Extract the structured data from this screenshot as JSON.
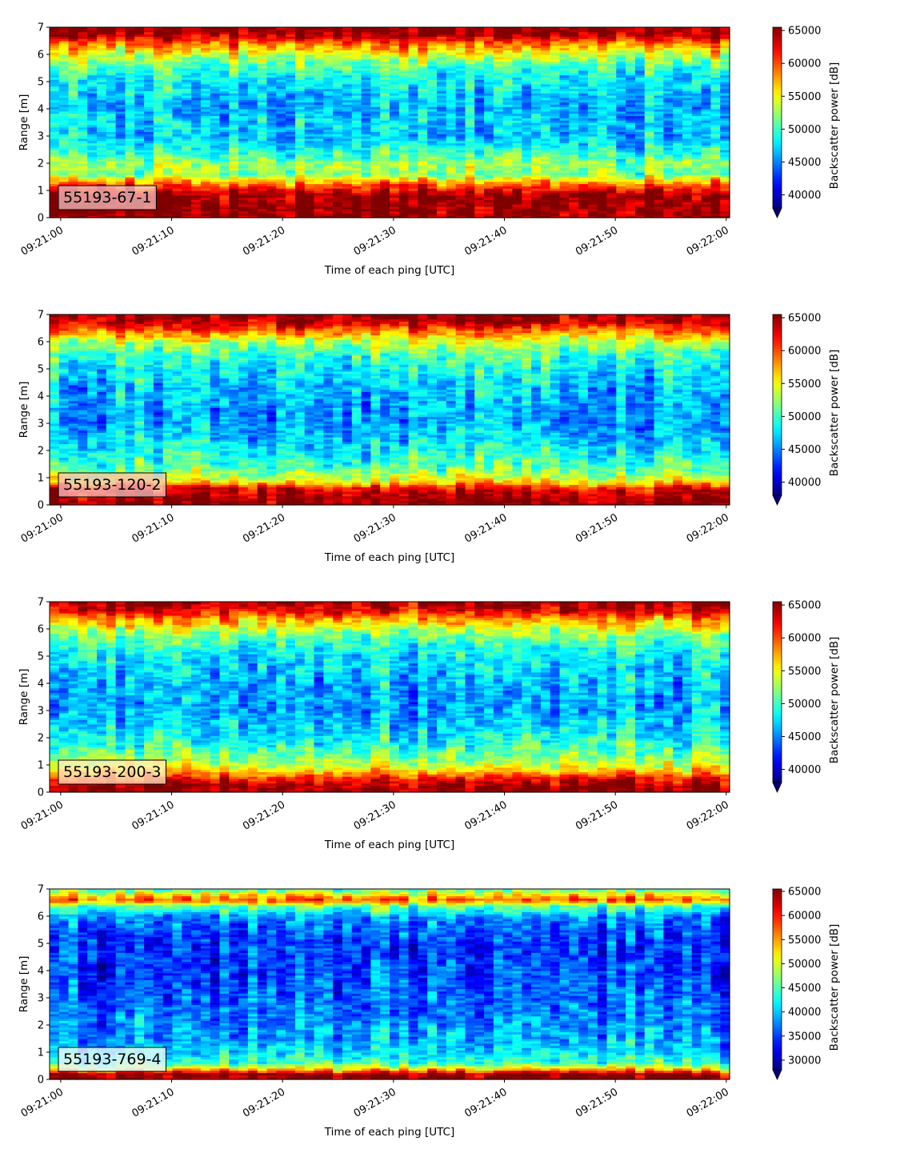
{
  "chart_data": [
    {
      "type": "heatmap",
      "label": "55193-67-1",
      "xlabel": "Time of each ping [UTC]",
      "ylabel": "Range [m]",
      "x_ticks": [
        "09:21:00",
        "09:21:10",
        "09:21:20",
        "09:21:30",
        "09:21:40",
        "09:21:50",
        "09:22:00"
      ],
      "xlim": [
        "09:20:59",
        "09:22:00.3"
      ],
      "y_ticks": [
        "0",
        "1",
        "2",
        "3",
        "4",
        "5",
        "6",
        "7"
      ],
      "ylim": [
        0,
        7
      ],
      "colorbar_label": "Backscatter power [dB]",
      "colorbar_ticks": [
        "40000",
        "45000",
        "50000",
        "55000",
        "60000",
        "65000"
      ],
      "colorbar_range": [
        38000,
        65500
      ],
      "colormap": "jet",
      "profile": [
        {
          "range_m": 0.25,
          "level": 65000
        },
        {
          "range_m": 0.8,
          "level": 65000
        },
        {
          "range_m": 1.2,
          "level": 60000
        },
        {
          "range_m": 1.6,
          "level": 52000
        },
        {
          "range_m": 2.0,
          "level": 53000
        },
        {
          "range_m": 2.5,
          "level": 49000
        },
        {
          "range_m": 3.0,
          "level": 47000
        },
        {
          "range_m": 3.5,
          "level": 47500
        },
        {
          "range_m": 4.0,
          "level": 46500
        },
        {
          "range_m": 4.5,
          "level": 47000
        },
        {
          "range_m": 5.0,
          "level": 48000
        },
        {
          "range_m": 5.5,
          "level": 50000
        },
        {
          "range_m": 6.0,
          "level": 54000
        },
        {
          "range_m": 6.4,
          "level": 59000
        },
        {
          "range_m": 6.7,
          "level": 64000
        },
        {
          "range_m": 7.0,
          "level": 65000
        }
      ]
    },
    {
      "type": "heatmap",
      "label": "55193-120-2",
      "xlabel": "Time of each ping [UTC]",
      "ylabel": "Range [m]",
      "x_ticks": [
        "09:21:00",
        "09:21:10",
        "09:21:20",
        "09:21:30",
        "09:21:40",
        "09:21:50",
        "09:22:00"
      ],
      "xlim": [
        "09:20:59",
        "09:22:00.3"
      ],
      "y_ticks": [
        "0",
        "1",
        "2",
        "3",
        "4",
        "5",
        "6",
        "7"
      ],
      "ylim": [
        0,
        7
      ],
      "colorbar_label": "Backscatter power [dB]",
      "colorbar_ticks": [
        "40000",
        "45000",
        "50000",
        "55000",
        "60000",
        "65000"
      ],
      "colorbar_range": [
        38000,
        65500
      ],
      "colormap": "jet",
      "profile": [
        {
          "range_m": 0.2,
          "level": 65000
        },
        {
          "range_m": 0.6,
          "level": 63000
        },
        {
          "range_m": 0.9,
          "level": 55000
        },
        {
          "range_m": 1.4,
          "level": 50500
        },
        {
          "range_m": 2.0,
          "level": 48500
        },
        {
          "range_m": 2.5,
          "level": 47000
        },
        {
          "range_m": 3.0,
          "level": 46000
        },
        {
          "range_m": 3.5,
          "level": 46000
        },
        {
          "range_m": 4.0,
          "level": 46500
        },
        {
          "range_m": 4.5,
          "level": 47000
        },
        {
          "range_m": 5.0,
          "level": 48000
        },
        {
          "range_m": 5.5,
          "level": 50000
        },
        {
          "range_m": 6.0,
          "level": 53500
        },
        {
          "range_m": 6.4,
          "level": 59000
        },
        {
          "range_m": 6.7,
          "level": 63500
        },
        {
          "range_m": 7.0,
          "level": 65000
        }
      ]
    },
    {
      "type": "heatmap",
      "label": "55193-200-3",
      "xlabel": "Time of each ping [UTC]",
      "ylabel": "Range [m]",
      "x_ticks": [
        "09:21:00",
        "09:21:10",
        "09:21:20",
        "09:21:30",
        "09:21:40",
        "09:21:50",
        "09:22:00"
      ],
      "xlim": [
        "09:20:59",
        "09:22:00.3"
      ],
      "y_ticks": [
        "0",
        "1",
        "2",
        "3",
        "4",
        "5",
        "6",
        "7"
      ],
      "ylim": [
        0,
        7
      ],
      "colorbar_label": "Backscatter power [dB]",
      "colorbar_ticks": [
        "40000",
        "45000",
        "50000",
        "55000",
        "60000",
        "65000"
      ],
      "colorbar_range": [
        38000,
        65500
      ],
      "colormap": "jet",
      "profile": [
        {
          "range_m": 0.2,
          "level": 65000
        },
        {
          "range_m": 0.5,
          "level": 62000
        },
        {
          "range_m": 0.9,
          "level": 55000
        },
        {
          "range_m": 1.4,
          "level": 51000
        },
        {
          "range_m": 2.0,
          "level": 48500
        },
        {
          "range_m": 2.5,
          "level": 47000
        },
        {
          "range_m": 3.0,
          "level": 46000
        },
        {
          "range_m": 3.5,
          "level": 46000
        },
        {
          "range_m": 4.0,
          "level": 46500
        },
        {
          "range_m": 4.5,
          "level": 47000
        },
        {
          "range_m": 5.0,
          "level": 48000
        },
        {
          "range_m": 5.5,
          "level": 50000
        },
        {
          "range_m": 6.0,
          "level": 53500
        },
        {
          "range_m": 6.4,
          "level": 58500
        },
        {
          "range_m": 6.7,
          "level": 63000
        },
        {
          "range_m": 7.0,
          "level": 65000
        }
      ]
    },
    {
      "type": "heatmap",
      "label": "55193-769-4",
      "xlabel": "Time of each ping [UTC]",
      "ylabel": "Range [m]",
      "x_ticks": [
        "09:21:00",
        "09:21:10",
        "09:21:20",
        "09:21:30",
        "09:21:40",
        "09:21:50",
        "09:22:00"
      ],
      "xlim": [
        "09:20:59",
        "09:22:00.3"
      ],
      "y_ticks": [
        "0",
        "1",
        "2",
        "3",
        "4",
        "5",
        "6",
        "7"
      ],
      "ylim": [
        0,
        7
      ],
      "colorbar_label": "Backscatter power [dB]",
      "colorbar_ticks": [
        "30000",
        "35000",
        "40000",
        "45000",
        "50000",
        "55000",
        "60000",
        "65000"
      ],
      "colorbar_range": [
        28000,
        65500
      ],
      "colormap": "jet",
      "profile": [
        {
          "range_m": 0.2,
          "level": 65000
        },
        {
          "range_m": 0.35,
          "level": 55000
        },
        {
          "range_m": 0.6,
          "level": 44000
        },
        {
          "range_m": 1.0,
          "level": 41000
        },
        {
          "range_m": 1.5,
          "level": 39000
        },
        {
          "range_m": 2.0,
          "level": 38000
        },
        {
          "range_m": 2.5,
          "level": 37000
        },
        {
          "range_m": 3.0,
          "level": 36500
        },
        {
          "range_m": 3.5,
          "level": 36000
        },
        {
          "range_m": 4.0,
          "level": 35000
        },
        {
          "range_m": 4.5,
          "level": 34500
        },
        {
          "range_m": 5.0,
          "level": 34500
        },
        {
          "range_m": 5.5,
          "level": 35500
        },
        {
          "range_m": 6.0,
          "level": 38000
        },
        {
          "range_m": 6.4,
          "level": 46000
        },
        {
          "range_m": 6.6,
          "level": 58000
        },
        {
          "range_m": 6.85,
          "level": 50000
        },
        {
          "range_m": 7.0,
          "level": 45000
        }
      ]
    }
  ]
}
